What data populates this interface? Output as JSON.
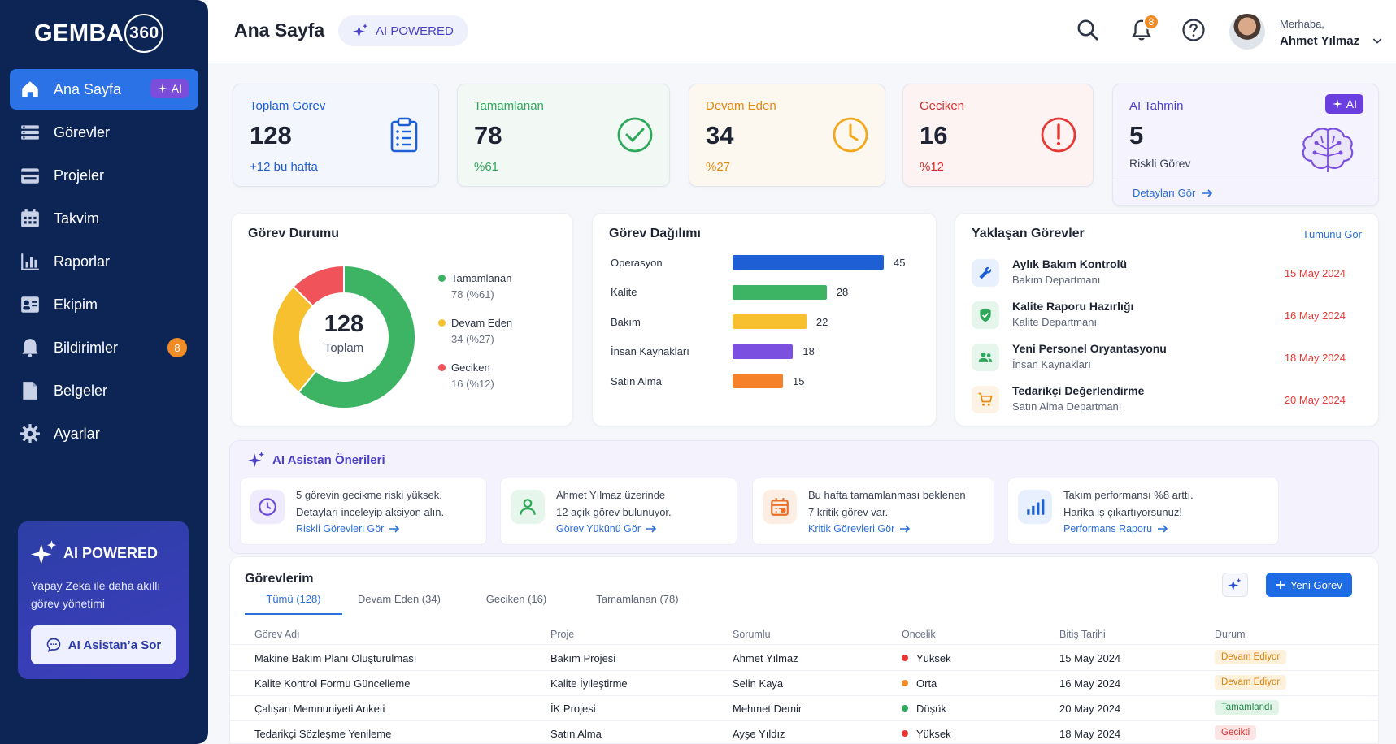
{
  "brand": {
    "name": "GEMBA",
    "number": "360"
  },
  "sidebar": {
    "items": [
      {
        "label": "Ana Sayfa",
        "icon": "home-icon",
        "active": true,
        "badge": "AI"
      },
      {
        "label": "Görevler",
        "icon": "list-icon"
      },
      {
        "label": "Projeler",
        "icon": "folder-icon"
      },
      {
        "label": "Takvim",
        "icon": "calendar-icon"
      },
      {
        "label": "Raporlar",
        "icon": "bar-chart-icon"
      },
      {
        "label": "Ekipim",
        "icon": "team-icon"
      },
      {
        "label": "Bildirimler",
        "icon": "bell-icon",
        "count": "8"
      },
      {
        "label": "Belgeler",
        "icon": "document-icon"
      },
      {
        "label": "Ayarlar",
        "icon": "gear-icon"
      }
    ],
    "ai_card": {
      "title": "AI POWERED",
      "desc": "Yapay Zeka ile daha akıllı görev yönetimi",
      "button": "AI Asistan’a Sor"
    }
  },
  "header": {
    "title": "Ana Sayfa",
    "ai_badge": "AI POWERED",
    "notif_count": "8",
    "greeting": "Merhaba,",
    "user": "Ahmet Yılmaz"
  },
  "stats": [
    {
      "label": "Toplam Görev",
      "value": "128",
      "sub": "+12 bu hafta",
      "color": "#1f5fd6",
      "bg": "#f3f6fc",
      "icon": "clipboard-icon"
    },
    {
      "label": "Tamamlanan",
      "value": "78",
      "sub": "%61",
      "color": "#2ea85a",
      "bg": "#f2f9f4",
      "icon": "check-circle-icon"
    },
    {
      "label": "Devam Eden",
      "value": "34",
      "sub": "%27",
      "color": "#e38a12",
      "bg": "#fdf8ef",
      "icon": "clock-icon"
    },
    {
      "label": "Geciken",
      "value": "16",
      "sub": "%12",
      "color": "#d32f2f",
      "bg": "#fdf3f3",
      "icon": "alert-icon"
    },
    {
      "label": "AI Tahmin",
      "value": "5",
      "sub": "Riskli Görev",
      "link": "Detayları Gör",
      "badge": "AI",
      "color": "#4a3fc7",
      "bg": "#f5f3fe",
      "icon": "brain-icon"
    }
  ],
  "status_card": {
    "title": "Görev Durumu",
    "total": "128",
    "total_label": "Toplam",
    "legend": [
      {
        "name": "Tamamlanan",
        "value": "78 (%61)",
        "color": "#3cb464"
      },
      {
        "name": "Devam Eden",
        "value": "34 (%27)",
        "color": "#f7c02e"
      },
      {
        "name": "Geciken",
        "value": "16 (%12)",
        "color": "#f0535a"
      }
    ]
  },
  "chart_data": [
    {
      "type": "pie",
      "title": "Görev Durumu",
      "labels": [
        "Tamamlanan",
        "Devam Eden",
        "Geciken"
      ],
      "values": [
        78,
        34,
        16
      ]
    },
    {
      "type": "bar",
      "title": "Görev Dağılımı",
      "categories": [
        "Operasyon",
        "Kalite",
        "Bakım",
        "İnsan Kaynakları",
        "Satın Alma"
      ],
      "values": [
        45,
        28,
        22,
        18,
        15
      ],
      "colors": [
        "#1f5fd6",
        "#3cb464",
        "#f7c02e",
        "#7b4fe0",
        "#f5812a"
      ]
    }
  ],
  "distribution": {
    "title": "Görev Dağılımı"
  },
  "upcoming": {
    "title": "Yaklaşan Görevler",
    "link": "Tümünü Gör",
    "items": [
      {
        "name": "Aylık Bakım Kontrolü",
        "dept": "Bakım Departmanı",
        "date": "15 May 2024",
        "icon": "wrench-icon",
        "color": "#1f5fd6",
        "bg": "#e8f0fd"
      },
      {
        "name": "Kalite Raporu Hazırlığı",
        "dept": "Kalite Departmanı",
        "date": "16 May 2024",
        "icon": "shield-check-icon",
        "color": "#2ea85a",
        "bg": "#e7f6ec"
      },
      {
        "name": "Yeni Personel Oryantasyonu",
        "dept": "İnsan Kaynakları",
        "date": "18 May 2024",
        "icon": "people-icon",
        "color": "#2ea85a",
        "bg": "#e7f6ec"
      },
      {
        "name": "Tedarikçi Değerlendirme",
        "dept": "Satın Alma Departmanı",
        "date": "20 May 2024",
        "icon": "cart-icon",
        "color": "#e38a12",
        "bg": "#fdf3e4"
      }
    ]
  },
  "ai_suggestions": {
    "title": "AI Asistan Önerileri",
    "items": [
      {
        "line1": "5 görevin gecikme riski yüksek.",
        "line2": "Detayları inceleyip aksiyon alın.",
        "link": "Riskli Görevleri Gör",
        "icon": "clock-icon",
        "color": "#6b4fd8",
        "bg": "#efeafc"
      },
      {
        "line1": "Ahmet Yılmaz üzerinde",
        "line2": "12 açık görev bulunuyor.",
        "link": "Görev Yükünü Gör",
        "icon": "user-icon",
        "color": "#2ea85a",
        "bg": "#e7f6ec"
      },
      {
        "line1": "Bu hafta tamamlanması beklenen",
        "line2": "7 kritik görev var.",
        "link": "Kritik Görevleri Gör",
        "icon": "calendar-alert-icon",
        "color": "#e8702a",
        "bg": "#fdeee3"
      },
      {
        "line1": "Takım performansı %8 arttı.",
        "line2": "Harika iş çıkartıyorsunuz!",
        "link": "Performans Raporu",
        "icon": "signal-icon",
        "color": "#1f5fd6",
        "bg": "#e8f0fd"
      }
    ]
  },
  "tasks": {
    "title": "Görevlerim",
    "tabs": [
      "Tümü (128)",
      "Devam Eden (34)",
      "Geciken (16)",
      "Tamamlanan (78)"
    ],
    "new_button": "Yeni Görev",
    "columns": [
      "Görev Adı",
      "Proje",
      "Sorumlu",
      "Öncelik",
      "Bitiş Tarihi",
      "Durum"
    ],
    "rows": [
      {
        "name": "Makine Bakım Planı Oluşturulması",
        "project": "Bakım Projesi",
        "owner": "Ahmet Yılmaz",
        "priority": "Yüksek",
        "pcolor": "#e53935",
        "date": "15 May 2024",
        "status": "Devam Ediyor",
        "scolor": "#d9820e",
        "sbg": "#fdf1dc"
      },
      {
        "name": "Kalite Kontrol Formu Güncelleme",
        "project": "Kalite İyileştirme",
        "owner": "Selin Kaya",
        "priority": "Orta",
        "pcolor": "#f08c26",
        "date": "16 May 2024",
        "status": "Devam Ediyor",
        "scolor": "#d9820e",
        "sbg": "#fdf1dc"
      },
      {
        "name": "Çalışan Memnuniyeti Anketi",
        "project": "İK Projesi",
        "owner": "Mehmet Demir",
        "priority": "Düşük",
        "pcolor": "#2ea85a",
        "date": "20 May 2024",
        "status": "Tamamlandı",
        "scolor": "#23864a",
        "sbg": "#e2f4e8"
      },
      {
        "name": "Tedarikçi Sözleşme Yenileme",
        "project": "Satın Alma",
        "owner": "Ayşe Yıldız",
        "priority": "Yüksek",
        "pcolor": "#e53935",
        "date": "18 May 2024",
        "status": "Gecikti",
        "scolor": "#d32f2f",
        "sbg": "#fde5e5"
      }
    ]
  }
}
